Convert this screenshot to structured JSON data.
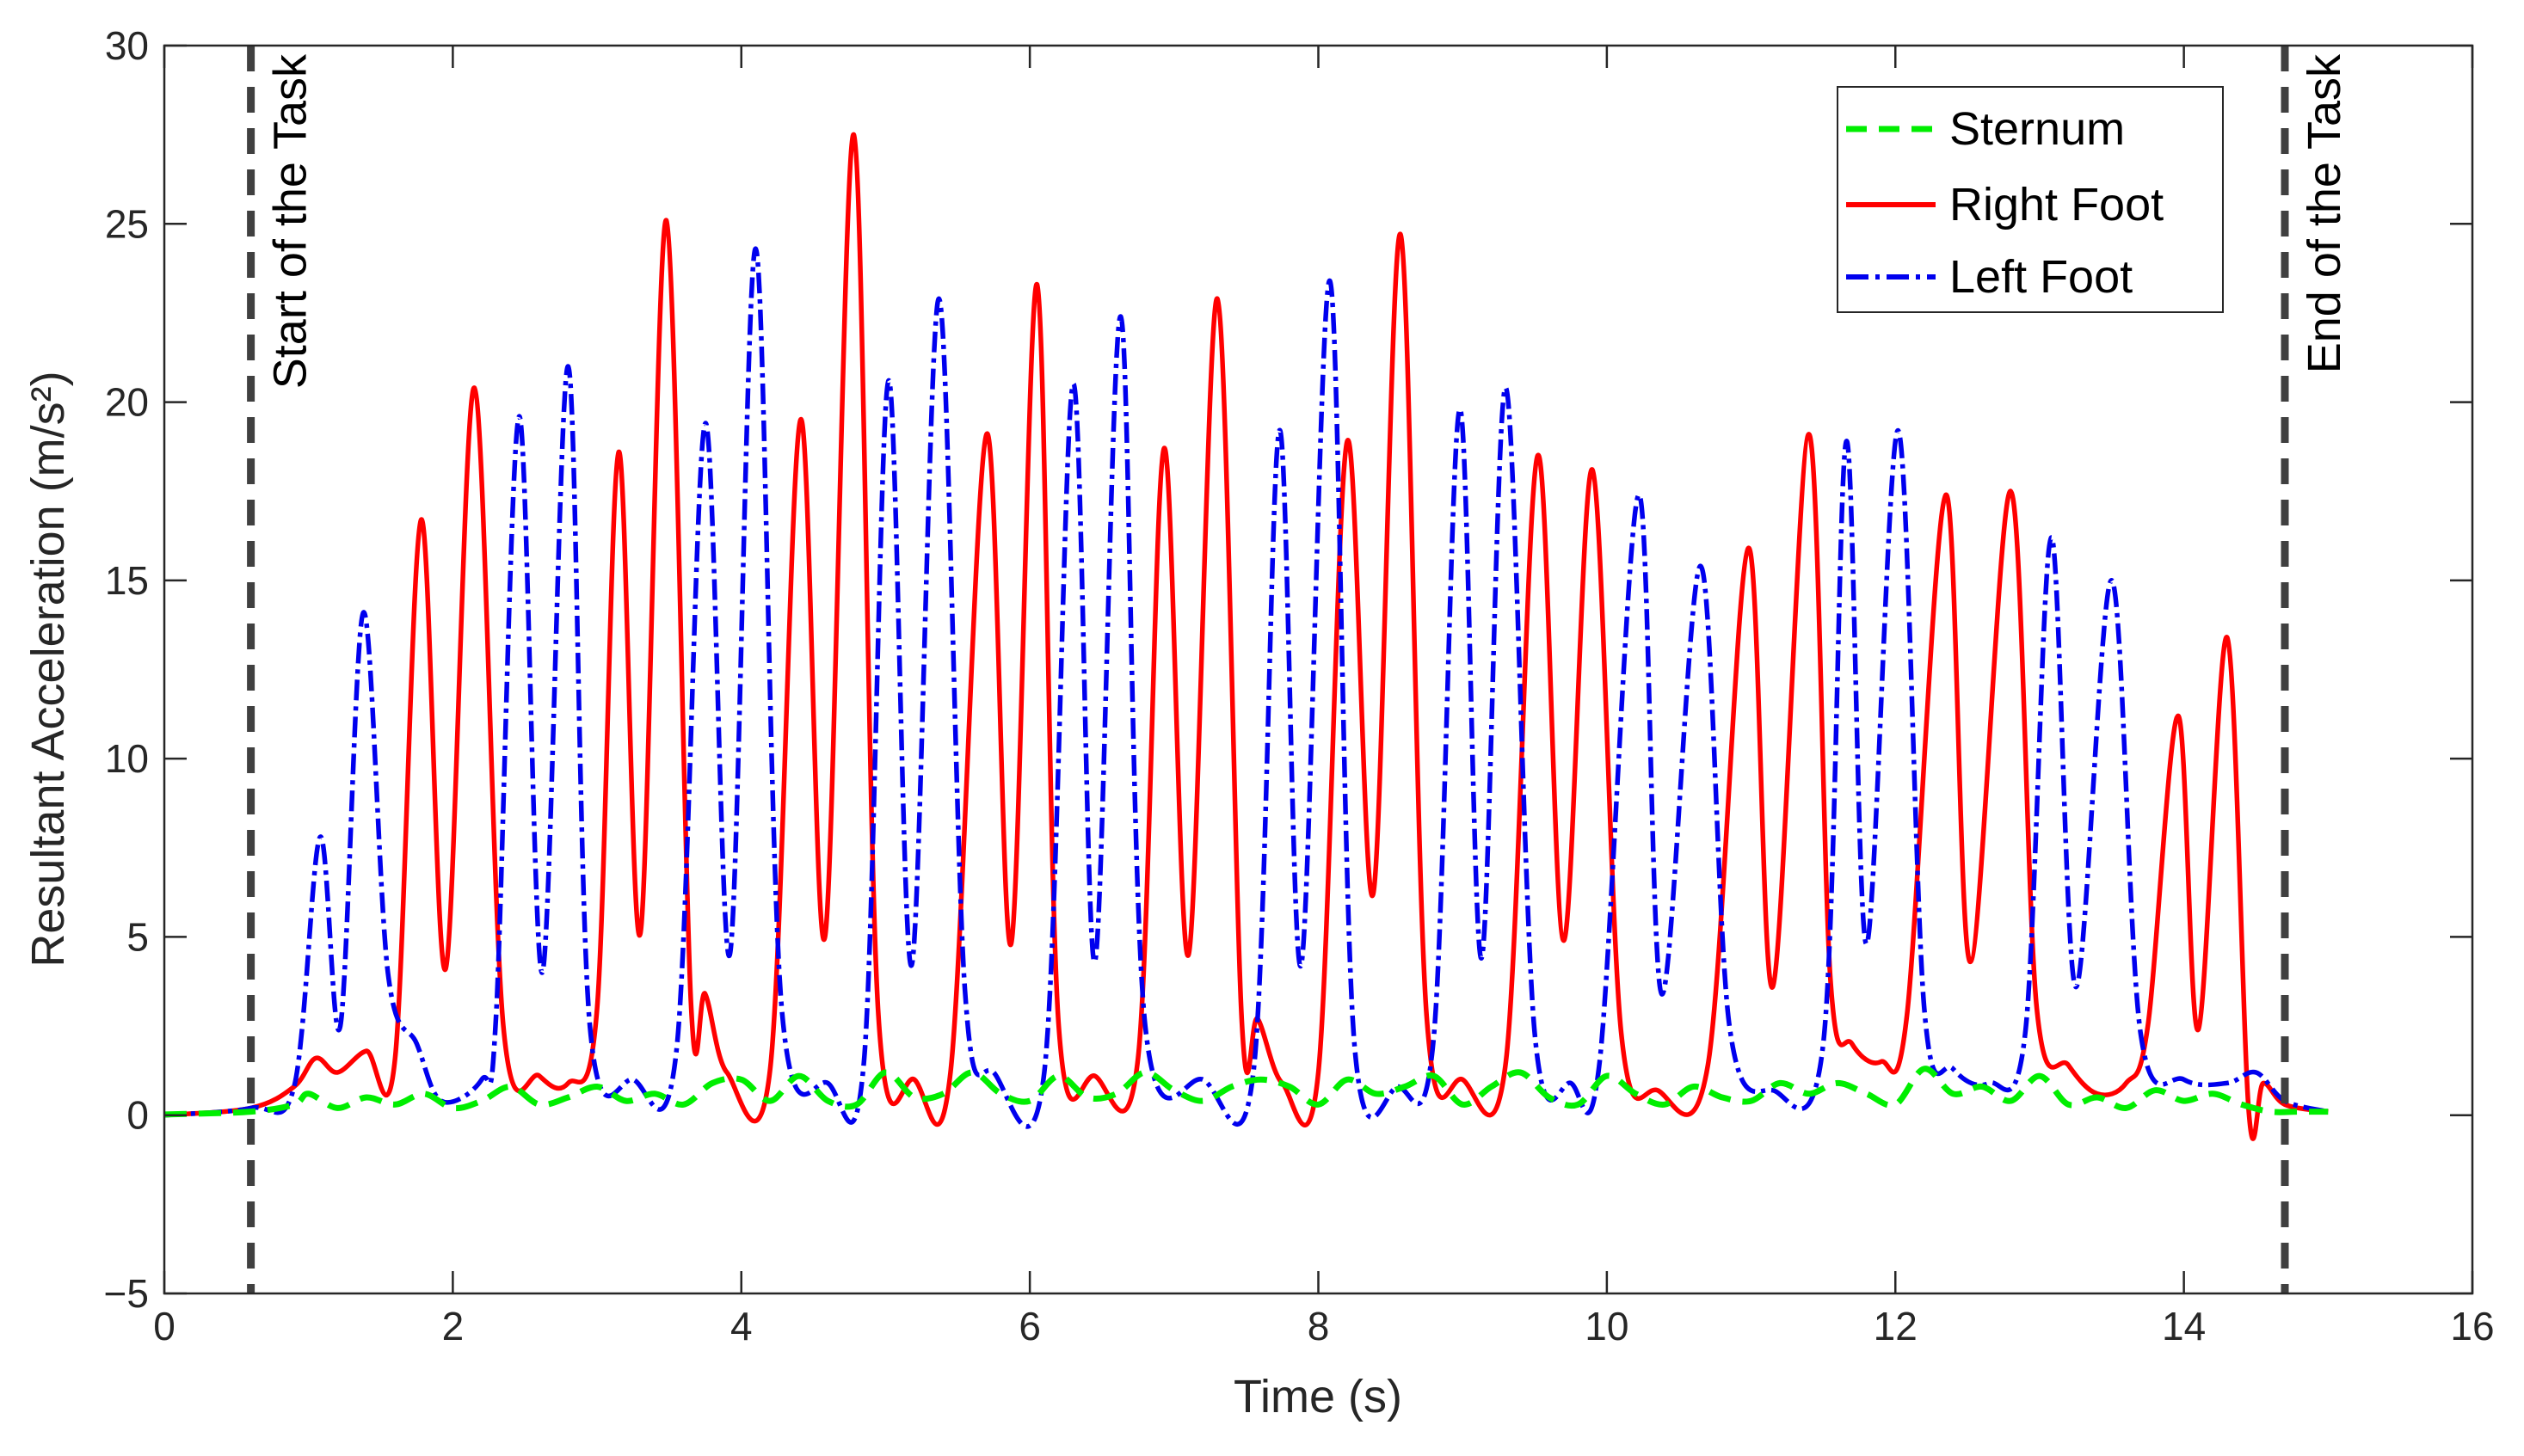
{
  "chart_data": {
    "type": "line",
    "title": "",
    "xlabel": "Time (s)",
    "ylabel": "Resultant Acceleration (m/s²)",
    "xlim": [
      0,
      16
    ],
    "ylim": [
      -5,
      30
    ],
    "xticks": [
      0,
      2,
      4,
      6,
      8,
      10,
      12,
      14,
      16
    ],
    "yticks": [
      -5,
      0,
      5,
      10,
      15,
      20,
      25,
      30
    ],
    "xtick_labels": [
      "0",
      "2",
      "4",
      "6",
      "8",
      "10",
      "12",
      "14",
      "16"
    ],
    "ytick_labels": [
      "−5",
      "0",
      "5",
      "10",
      "15",
      "20",
      "25",
      "30"
    ],
    "grid": false,
    "legend_position": "top-right",
    "annotations": [
      {
        "label": "Start of the Task",
        "x": 0.6
      },
      {
        "label": "End of the Task",
        "x": 14.7
      }
    ],
    "series": [
      {
        "name": "Sternum",
        "color": "#00ee00",
        "style": "dashed",
        "points": [
          [
            0,
            0.02
          ],
          [
            0.6,
            0.1
          ],
          [
            0.9,
            0.3
          ],
          [
            1.0,
            0.6
          ],
          [
            1.2,
            0.2
          ],
          [
            1.4,
            0.5
          ],
          [
            1.6,
            0.3
          ],
          [
            1.8,
            0.6
          ],
          [
            2.0,
            0.2
          ],
          [
            2.2,
            0.4
          ],
          [
            2.4,
            0.8
          ],
          [
            2.6,
            0.3
          ],
          [
            2.8,
            0.5
          ],
          [
            3.0,
            0.8
          ],
          [
            3.2,
            0.4
          ],
          [
            3.4,
            0.6
          ],
          [
            3.6,
            0.3
          ],
          [
            3.8,
            0.9
          ],
          [
            4.0,
            1.0
          ],
          [
            4.2,
            0.4
          ],
          [
            4.4,
            1.1
          ],
          [
            4.6,
            0.4
          ],
          [
            4.8,
            0.3
          ],
          [
            5.0,
            1.2
          ],
          [
            5.2,
            0.5
          ],
          [
            5.4,
            0.6
          ],
          [
            5.6,
            1.2
          ],
          [
            5.8,
            0.6
          ],
          [
            6.0,
            0.4
          ],
          [
            6.2,
            1.1
          ],
          [
            6.4,
            0.5
          ],
          [
            6.6,
            0.6
          ],
          [
            6.8,
            1.2
          ],
          [
            7.0,
            0.7
          ],
          [
            7.2,
            0.4
          ],
          [
            7.4,
            0.8
          ],
          [
            7.6,
            1.0
          ],
          [
            7.8,
            0.8
          ],
          [
            8.0,
            0.3
          ],
          [
            8.2,
            1.0
          ],
          [
            8.4,
            0.6
          ],
          [
            8.6,
            0.8
          ],
          [
            8.8,
            1.1
          ],
          [
            9.0,
            0.3
          ],
          [
            9.2,
            0.8
          ],
          [
            9.4,
            1.2
          ],
          [
            9.6,
            0.5
          ],
          [
            9.8,
            0.3
          ],
          [
            10.0,
            1.1
          ],
          [
            10.2,
            0.6
          ],
          [
            10.4,
            0.3
          ],
          [
            10.6,
            0.8
          ],
          [
            10.8,
            0.5
          ],
          [
            11.0,
            0.4
          ],
          [
            11.2,
            0.9
          ],
          [
            11.4,
            0.6
          ],
          [
            11.6,
            0.9
          ],
          [
            11.8,
            0.6
          ],
          [
            12.0,
            0.3
          ],
          [
            12.2,
            1.3
          ],
          [
            12.4,
            0.6
          ],
          [
            12.6,
            0.8
          ],
          [
            12.8,
            0.4
          ],
          [
            13.0,
            1.1
          ],
          [
            13.2,
            0.3
          ],
          [
            13.4,
            0.5
          ],
          [
            13.6,
            0.2
          ],
          [
            13.8,
            0.7
          ],
          [
            14.0,
            0.4
          ],
          [
            14.2,
            0.6
          ],
          [
            14.4,
            0.3
          ],
          [
            14.6,
            0.1
          ],
          [
            14.8,
            0.1
          ],
          [
            15.0,
            0.1
          ]
        ]
      },
      {
        "name": "Right Foot",
        "color": "#ff0000",
        "style": "solid",
        "points": [
          [
            0,
            0
          ],
          [
            0.6,
            0.2
          ],
          [
            0.9,
            0.8
          ],
          [
            1.05,
            1.6
          ],
          [
            1.2,
            1.2
          ],
          [
            1.4,
            1.8
          ],
          [
            1.6,
            1.6
          ],
          [
            1.78,
            16.7
          ],
          [
            1.95,
            4.1
          ],
          [
            2.15,
            20.4
          ],
          [
            2.35,
            2.5
          ],
          [
            2.6,
            1.1
          ],
          [
            2.8,
            0.9
          ],
          [
            3.0,
            3.0
          ],
          [
            3.15,
            18.6
          ],
          [
            3.3,
            5.1
          ],
          [
            3.48,
            25.1
          ],
          [
            3.65,
            3.2
          ],
          [
            3.75,
            3.4
          ],
          [
            3.9,
            1.2
          ],
          [
            4.2,
            1.3
          ],
          [
            4.41,
            19.5
          ],
          [
            4.58,
            5.0
          ],
          [
            4.78,
            27.5
          ],
          [
            4.95,
            2.8
          ],
          [
            5.2,
            1.0
          ],
          [
            5.45,
            1.2
          ],
          [
            5.7,
            19.1
          ],
          [
            5.87,
            4.8
          ],
          [
            6.05,
            23.3
          ],
          [
            6.2,
            2.5
          ],
          [
            6.45,
            1.1
          ],
          [
            6.75,
            1.6
          ],
          [
            6.93,
            18.7
          ],
          [
            7.1,
            4.5
          ],
          [
            7.3,
            22.9
          ],
          [
            7.47,
            2.6
          ],
          [
            7.58,
            2.7
          ],
          [
            7.75,
            0.9
          ],
          [
            8.0,
            1.2
          ],
          [
            8.2,
            18.9
          ],
          [
            8.38,
            6.2
          ],
          [
            8.57,
            24.7
          ],
          [
            8.75,
            2.8
          ],
          [
            9.0,
            1.0
          ],
          [
            9.3,
            1.5
          ],
          [
            9.52,
            18.5
          ],
          [
            9.7,
            4.9
          ],
          [
            9.9,
            18.1
          ],
          [
            10.1,
            2.3
          ],
          [
            10.35,
            0.7
          ],
          [
            10.7,
            1.4
          ],
          [
            10.98,
            15.9
          ],
          [
            11.15,
            3.6
          ],
          [
            11.4,
            19.1
          ],
          [
            11.55,
            3.8
          ],
          [
            11.7,
            2.0
          ],
          [
            11.9,
            1.5
          ],
          [
            12.08,
            2.8
          ],
          [
            12.35,
            17.4
          ],
          [
            12.52,
            4.3
          ],
          [
            12.8,
            17.5
          ],
          [
            12.98,
            3.0
          ],
          [
            13.2,
            1.4
          ],
          [
            13.4,
            0.6
          ],
          [
            13.6,
            0.9
          ],
          [
            13.75,
            2.5
          ],
          [
            13.96,
            11.2
          ],
          [
            14.1,
            2.4
          ],
          [
            14.3,
            13.4
          ],
          [
            14.45,
            0.1
          ],
          [
            14.55,
            0.9
          ],
          [
            14.7,
            0.3
          ],
          [
            15.0,
            0.1
          ]
        ]
      },
      {
        "name": "Left Foot",
        "color": "#0000ee",
        "style": "dashdot",
        "points": [
          [
            0,
            0
          ],
          [
            0.6,
            0.2
          ],
          [
            0.9,
            0.8
          ],
          [
            1.08,
            7.8
          ],
          [
            1.22,
            2.5
          ],
          [
            1.38,
            14.1
          ],
          [
            1.55,
            4.0
          ],
          [
            1.75,
            2.0
          ],
          [
            1.92,
            0.4
          ],
          [
            2.2,
            1.0
          ],
          [
            2.3,
            2.8
          ],
          [
            2.46,
            19.6
          ],
          [
            2.62,
            4.0
          ],
          [
            2.8,
            21.0
          ],
          [
            2.95,
            2.5
          ],
          [
            3.25,
            1.0
          ],
          [
            3.55,
            1.8
          ],
          [
            3.75,
            19.4
          ],
          [
            3.92,
            4.5
          ],
          [
            4.1,
            24.3
          ],
          [
            4.28,
            3.0
          ],
          [
            4.6,
            0.9
          ],
          [
            4.85,
            1.5
          ],
          [
            5.02,
            20.6
          ],
          [
            5.18,
            4.2
          ],
          [
            5.37,
            22.9
          ],
          [
            5.55,
            3.5
          ],
          [
            5.75,
            1.2
          ],
          [
            6.1,
            1.2
          ],
          [
            6.3,
            20.5
          ],
          [
            6.45,
            4.3
          ],
          [
            6.63,
            22.4
          ],
          [
            6.8,
            2.5
          ],
          [
            7.2,
            1.0
          ],
          [
            7.55,
            1.2
          ],
          [
            7.73,
            19.2
          ],
          [
            7.88,
            4.2
          ],
          [
            8.08,
            23.4
          ],
          [
            8.25,
            2.0
          ],
          [
            8.55,
            0.8
          ],
          [
            8.8,
            2.2
          ],
          [
            8.98,
            19.8
          ],
          [
            9.13,
            4.4
          ],
          [
            9.3,
            20.4
          ],
          [
            9.5,
            2.3
          ],
          [
            9.75,
            0.9
          ],
          [
            9.95,
            1.5
          ],
          [
            10.22,
            17.4
          ],
          [
            10.38,
            3.4
          ],
          [
            10.65,
            15.4
          ],
          [
            10.85,
            2.5
          ],
          [
            11.15,
            0.7
          ],
          [
            11.5,
            2.0
          ],
          [
            11.66,
            18.9
          ],
          [
            11.8,
            4.8
          ],
          [
            12.02,
            19.2
          ],
          [
            12.2,
            3.0
          ],
          [
            12.4,
            1.3
          ],
          [
            12.65,
            0.9
          ],
          [
            12.9,
            2.3
          ],
          [
            13.08,
            16.2
          ],
          [
            13.25,
            3.6
          ],
          [
            13.5,
            15.0
          ],
          [
            13.7,
            2.3
          ],
          [
            14.0,
            1.0
          ],
          [
            14.3,
            0.9
          ],
          [
            14.5,
            1.2
          ],
          [
            14.7,
            0.4
          ],
          [
            15.0,
            0.1
          ]
        ]
      }
    ]
  },
  "colors": {
    "sternum": "#00ee00",
    "right_foot": "#ff0000",
    "left_foot": "#0000ee",
    "marker_lines": "#404040",
    "axes": "#262626"
  }
}
